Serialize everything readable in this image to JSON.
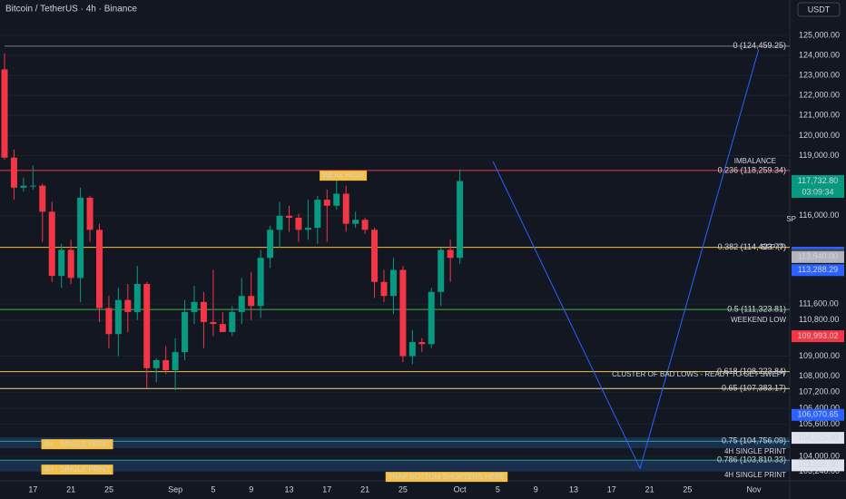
{
  "header": {
    "symbol": "Bitcoin / TetherUS · 4h · Binance",
    "currency": "USDT"
  },
  "chart_data": {
    "type": "candlestick",
    "categories": [
      null,
      null,
      null,
      "17",
      null,
      null,
      null,
      "21",
      null,
      null,
      null,
      "25",
      null,
      null,
      null,
      null,
      null,
      null,
      "Sep",
      null,
      null,
      null,
      "5",
      null,
      null,
      null,
      "9",
      null,
      null,
      null,
      "13",
      null,
      null,
      null,
      "17",
      null,
      null,
      null,
      "21",
      null,
      null,
      null,
      "25",
      null,
      null,
      null,
      null,
      null,
      "Oct",
      null,
      null,
      null,
      "5",
      null,
      null,
      null,
      "9",
      null,
      null,
      null,
      "13",
      null,
      null,
      null,
      "17",
      null,
      null,
      null,
      "21",
      null,
      null,
      null,
      "25",
      null,
      null,
      null,
      null,
      null,
      null,
      "Nov"
    ],
    "open": [
      123300,
      118900,
      117400,
      117500,
      117500,
      116200,
      113000,
      114300,
      112900,
      116900,
      115300,
      111400,
      110100,
      111800,
      111200,
      112600,
      108400,
      108800,
      108300,
      109200,
      111200,
      111700,
      110700,
      110600,
      110200,
      111200,
      112000,
      111500,
      113900,
      115300,
      116000,
      115900,
      115300,
      115400,
      116800,
      116500,
      117100,
      115600,
      115800,
      115300,
      112700,
      112000,
      113300,
      109000,
      109700,
      109600,
      112200,
      114300,
      113900,
      null,
      null,
      null,
      null,
      null,
      null,
      null,
      null,
      null,
      null,
      null,
      null,
      null,
      null,
      null,
      null,
      null,
      null,
      null,
      null,
      null,
      null,
      null,
      null,
      null,
      null,
      null,
      null,
      null,
      null,
      null
    ],
    "high": [
      124100,
      119300,
      117900,
      118500,
      117600,
      116700,
      114600,
      114800,
      117400,
      117000,
      115600,
      112000,
      112400,
      112600,
      113500,
      112700,
      108900,
      109500,
      109900,
      111800,
      112500,
      112200,
      113300,
      111200,
      111500,
      112900,
      113200,
      114300,
      115500,
      116700,
      116500,
      116100,
      116800,
      117000,
      117300,
      117900,
      117500,
      116200,
      115900,
      115400,
      113300,
      113900,
      113500,
      110300,
      109900,
      112400,
      114400,
      114800,
      118300,
      null,
      null,
      null,
      null,
      null,
      null,
      null,
      null,
      null,
      null,
      null,
      null,
      null,
      null,
      null,
      null,
      null,
      null,
      null,
      null,
      null,
      null,
      null,
      null,
      null,
      null,
      null,
      null,
      null,
      null,
      null
    ],
    "low": [
      118800,
      116800,
      117200,
      117300,
      114700,
      112700,
      112400,
      112600,
      111700,
      114700,
      110700,
      109400,
      109000,
      110200,
      110800,
      107400,
      107700,
      108100,
      107300,
      108800,
      110600,
      109400,
      110000,
      110200,
      110000,
      110600,
      110800,
      110900,
      113400,
      114400,
      115200,
      114700,
      114800,
      114600,
      114700,
      116300,
      115200,
      115400,
      115100,
      111900,
      111700,
      111100,
      108700,
      108600,
      109200,
      109400,
      111500,
      112700,
      113600,
      null,
      null,
      null,
      null,
      null,
      null,
      null,
      null,
      null,
      null,
      null,
      null,
      null,
      null,
      null,
      null,
      null,
      null,
      null,
      null,
      null,
      null,
      null,
      null,
      null,
      null,
      null,
      null,
      null,
      null,
      null
    ],
    "close": [
      118900,
      117400,
      117500,
      117500,
      116200,
      113000,
      114300,
      112900,
      116900,
      115300,
      111400,
      110100,
      111800,
      111200,
      112600,
      108400,
      108800,
      108300,
      109200,
      111200,
      111700,
      110700,
      110600,
      110200,
      111200,
      112000,
      111500,
      113900,
      115300,
      116000,
      115900,
      115300,
      115400,
      116800,
      116500,
      117100,
      115600,
      115800,
      115300,
      112700,
      112000,
      113300,
      109000,
      109700,
      109600,
      112200,
      114300,
      113900,
      117732.8,
      null,
      null,
      null,
      null,
      null,
      null,
      null,
      null,
      null,
      null,
      null,
      null,
      null,
      null,
      null,
      null,
      null,
      null,
      null,
      null,
      null,
      null,
      null,
      null,
      null,
      null,
      null,
      null,
      null,
      null,
      null
    ],
    "up_color": "#089981",
    "down_color": "#f23645",
    "ylim": [
      102780,
      126760
    ],
    "yticks": [
      {
        "value": 125000,
        "label": "125,000.00"
      },
      {
        "value": 124000,
        "label": "124,000.00"
      },
      {
        "value": 123000,
        "label": "123,000.00"
      },
      {
        "value": 122000,
        "label": "122,000.00"
      },
      {
        "value": 121000,
        "label": "121,000.00"
      },
      {
        "value": 120000,
        "label": "120,000.00"
      },
      {
        "value": 119000,
        "label": "119,000.00"
      },
      {
        "value": 116000,
        "label": "116,000.00"
      },
      {
        "value": 111600,
        "label": "111,600.00"
      },
      {
        "value": 110800,
        "label": "110,800.00"
      },
      {
        "value": 109000,
        "label": "109,000.00"
      },
      {
        "value": 108000,
        "label": "108,000.00"
      },
      {
        "value": 107200,
        "label": "107,200.00"
      },
      {
        "value": 106400,
        "label": "106,400.00"
      },
      {
        "value": 105600,
        "label": "105,600.00"
      },
      {
        "value": 104000,
        "label": "104,000.00"
      },
      {
        "value": 103240,
        "label": "103,240.00"
      }
    ],
    "levels": [
      {
        "value": 124459.25,
        "label": "0 (124,459.25)",
        "color": "#787b86"
      },
      {
        "value": 118259.34,
        "label": "0.236 (118,259.34)",
        "color": "#f23645"
      },
      {
        "value": 114423.77,
        "label": "0.382 (114,423.77)",
        "color": "#f5c043"
      },
      {
        "value": 111323.81,
        "label": "0.5 (111,323.81)",
        "color": "#4caf50"
      },
      {
        "value": 108223.84,
        "label": "0.618 (108,223.84)",
        "color": "#f5c043"
      },
      {
        "value": 107383.17,
        "label": "0.65 (107,383.17)",
        "color": "#e8e07a"
      },
      {
        "value": 104756.09,
        "label": "0.75 (104,756.09)",
        "color": "#26a69a"
      },
      {
        "value": 103810.33,
        "label": "0.786 (103,810.33)",
        "color": "#26a69a"
      }
    ],
    "price_labels": [
      {
        "value": 117732.8,
        "label": "117,732.80",
        "color": "#089981"
      },
      {
        "value": 114159.14,
        "label": "114,159.14",
        "color": "#2962ff"
      },
      {
        "value": 114048.93,
        "label": "114,048.93",
        "color": "#434651"
      },
      {
        "value": 113940,
        "label": "113,940.00",
        "color": "#b2b5be"
      },
      {
        "value": 113288.29,
        "label": "113,288.29",
        "color": "#2962ff"
      },
      {
        "value": 109993.02,
        "label": "109,993.02",
        "color": "#f23645"
      },
      {
        "value": 106070.65,
        "label": "106,070.65",
        "color": "#2962ff"
      },
      {
        "value": 104925,
        "label": "104,925.00",
        "color": "#e0e3eb"
      },
      {
        "value": 103555,
        "label": "103,555.00",
        "color": "#e0e3eb"
      }
    ],
    "countdown": "03:09:34",
    "projection": {
      "color": "#2962ff",
      "index": [
        51.5,
        67,
        79.5
      ],
      "values": [
        118700,
        103400,
        124300
      ]
    },
    "annotations": [
      "WEAK HIGH",
      "IMBALANCE",
      "SP",
      "SFP (?)",
      "WEEKEND LOW",
      "CLUSTER OF BAD LOWS - READY TO GET SWEPT",
      "4H - SINGLE PRINT",
      "4H - SINGLE PRINT",
      "4H SINGLE PRINT",
      "4H SINGLE PRINT",
      "TRAP BOTTOM SHORTERS HERE"
    ]
  }
}
